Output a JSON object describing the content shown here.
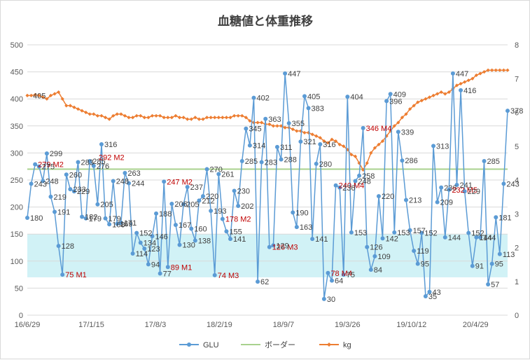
{
  "chart_data": {
    "type": "line",
    "title": "血糖値と体重推移",
    "x_ticks": [
      "16/6/29",
      "17/1/15",
      "17/8/3",
      "18/2/19",
      "18/9/7",
      "19/3/26",
      "19/10/12",
      "20/4/29"
    ],
    "y_left_ticks": [
      "0",
      "50",
      "100",
      "150",
      "200",
      "250",
      "300",
      "350",
      "400",
      "450",
      "500"
    ],
    "y_right_ticks": [
      "0",
      "1",
      "2",
      "3",
      "4",
      "5",
      "6",
      "7",
      "8"
    ],
    "ylim_left": [
      0,
      500
    ],
    "ylim_right": [
      0,
      8
    ],
    "target_band": [
      70,
      150
    ],
    "series": [
      {
        "name": "GLU",
        "axis": "left",
        "color": "#5b9bd5",
        "values": [
          180,
          243,
          279,
          275,
          248,
          299,
          219,
          191,
          128,
          75,
          260,
          233,
          229,
          283,
          182,
          179,
          285,
          276,
          205,
          316,
          179,
          168,
          248,
          169,
          171,
          263,
          244,
          114,
          152,
          134,
          123,
          94,
          146,
          188,
          77,
          247,
          89,
          206,
          167,
          130,
          205,
          237,
          160,
          138,
          212,
          220,
          270,
          193,
          74,
          261,
          178,
          155,
          141,
          230,
          202,
          285,
          345,
          314,
          402,
          62,
          283,
          363,
          126,
          129,
          311,
          288,
          447,
          355,
          190,
          163,
          321,
          405,
          383,
          141,
          280,
          316,
          30,
          78,
          64,
          240,
          236,
          75,
          404,
          153,
          248,
          258,
          346,
          126,
          84,
          109,
          220,
          142,
          396,
          409,
          153,
          339,
          286,
          213,
          157,
          119,
          95,
          152,
          35,
          43,
          313,
          209,
          236,
          144,
          232,
          447,
          241,
          416,
          229,
          152,
          91,
          144,
          144,
          285,
          57,
          95,
          181,
          113,
          243,
          378
        ],
        "labels": [
          "180",
          "243",
          "279 M2",
          "275",
          "248",
          "299",
          "219",
          "191",
          "128",
          "75 M1",
          "260",
          "233",
          "229",
          "283",
          "182",
          "179",
          "285",
          "276",
          "205",
          "316",
          "179",
          "168",
          "248",
          "169",
          "171",
          "263",
          "244",
          "114",
          "152",
          "134",
          "123",
          "94",
          "146",
          "188",
          "77",
          "247 M2",
          "89 M1",
          "206",
          "167",
          "130",
          "205",
          "237",
          "160",
          "138",
          "212",
          "220",
          "270",
          "193",
          "74 M3",
          "261",
          "178 M2",
          "155",
          "141",
          "230",
          "202",
          "285",
          "345",
          "314",
          "402",
          "62",
          "283",
          "363",
          "126 M3",
          "129",
          "311",
          "288",
          "447",
          "355",
          "190",
          "163",
          "321",
          "405",
          "383",
          "141",
          "280",
          "316",
          "30",
          "78 M4",
          "64",
          "240 M4",
          "236",
          "75",
          "404",
          "153",
          "248",
          "258",
          "346 M4",
          "126",
          "84",
          "109",
          "220",
          "142",
          "396",
          "409",
          "153",
          "339",
          "286",
          "213",
          "157",
          "119",
          "95",
          "152",
          "35",
          "43",
          "313",
          "209",
          "236",
          "144",
          "232 M5",
          "447",
          "241",
          "416",
          "229",
          "152",
          "91",
          "144",
          "144",
          "285",
          "57",
          "95",
          "181",
          "113",
          "243",
          "378"
        ],
        "red_labels": [
          "279 M2",
          "292 M2",
          "75 M1",
          "247 M2",
          "89 M1",
          "74 M3",
          "178 M2",
          "126 M3",
          "78 M4",
          "240 M4",
          "346 M4",
          "232 M5"
        ]
      },
      {
        "name": "ボーダー",
        "axis": "left",
        "color": "#a9d18e",
        "values": [
          270,
          270
        ]
      },
      {
        "name": "kg",
        "axis": "right",
        "color": "#ed7d31",
        "values": [
          6.5,
          6.5,
          6.52,
          6.5,
          6.45,
          6.4,
          6.5,
          6.55,
          6.6,
          6.4,
          6.2,
          6.2,
          6.15,
          6.1,
          6.05,
          6.0,
          5.95,
          5.95,
          5.9,
          5.9,
          5.85,
          5.8,
          5.9,
          5.95,
          5.95,
          5.9,
          5.85,
          5.85,
          5.9,
          5.9,
          5.85,
          5.85,
          5.9,
          5.9,
          5.9,
          5.85,
          5.85,
          5.85,
          5.9,
          5.85,
          5.85,
          5.8,
          5.8,
          5.85,
          5.8,
          5.8,
          5.85,
          5.85,
          5.85,
          5.85,
          5.85,
          5.85,
          5.85,
          5.9,
          5.9,
          5.9,
          5.85,
          5.75,
          5.7,
          5.7,
          5.7,
          5.65,
          5.65,
          5.6,
          5.6,
          5.6,
          5.55,
          5.55,
          5.5,
          5.45,
          5.45,
          5.4,
          5.4,
          5.35,
          5.3,
          5.25,
          5.15,
          5.1,
          5.2,
          5.15,
          5.05,
          5.0,
          4.9,
          4.75,
          4.7,
          4.5,
          4.3,
          4.5,
          4.8,
          4.95,
          5.05,
          5.15,
          5.3,
          5.45,
          5.6,
          5.7,
          5.85,
          5.95,
          6.1,
          6.2,
          6.3,
          6.35,
          6.4,
          6.45,
          6.5,
          6.55,
          6.6,
          6.55,
          6.6,
          6.7,
          6.8,
          6.85,
          6.9,
          6.95,
          7.0,
          7.1,
          7.15,
          7.2,
          7.25,
          7.25,
          7.25,
          7.25,
          7.25,
          7.25
        ],
        "labels": [
          "405"
        ]
      }
    ],
    "legend": [
      "GLU",
      "ボーダー",
      "kg"
    ],
    "legend_position": "bottom"
  },
  "colors": {
    "glu": "#5b9bd5",
    "border_line": "#a9d18e",
    "kg": "#ed7d31",
    "band": "#c9f0f5",
    "grid": "#d9d9d9"
  }
}
